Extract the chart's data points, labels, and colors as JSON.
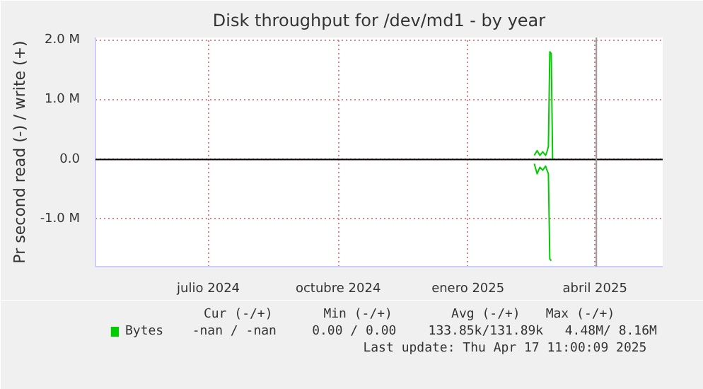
{
  "chart_data": {
    "type": "line",
    "title": "Disk throughput for /dev/md1 - by year",
    "ylabel": "Pr second read (-) / write (+)",
    "xlim": [
      "2024-04-27",
      "2025-06-03"
    ],
    "xticks": [
      {
        "value": "2024-07-16",
        "label": "julio 2024"
      },
      {
        "value": "2024-10-16",
        "label": "octubre 2024"
      },
      {
        "value": "2025-01-16",
        "label": "enero 2025"
      },
      {
        "value": "2025-04-16",
        "label": "abril 2025"
      }
    ],
    "ylim": [
      -1800000,
      2050000
    ],
    "yticks": [
      {
        "value": -1000000,
        "label": "-1.0 M"
      },
      {
        "value": 0,
        "label": "0.0"
      },
      {
        "value": 1000000,
        "label": "1.0 M"
      },
      {
        "value": 2000000,
        "label": "2.0 M"
      }
    ],
    "grid": true,
    "legend": "bottom",
    "series": [
      {
        "name": "Bytes",
        "color": "#00cc00",
        "x": [
          "2025-03-04",
          "2025-03-06",
          "2025-03-08",
          "2025-03-10",
          "2025-03-12",
          "2025-03-13",
          "2025-03-14",
          "2025-03-15",
          "2025-03-16",
          "2025-03-17"
        ],
        "values": [
          70000,
          150000,
          70000,
          130000,
          70000,
          130000,
          220000,
          1810000,
          1780000,
          0
        ]
      },
      {
        "color": "#00cc00",
        "x": [
          "2025-03-04",
          "2025-03-06",
          "2025-03-08",
          "2025-03-10",
          "2025-03-12",
          "2025-03-13",
          "2025-03-14",
          "2025-03-15",
          "2025-03-16"
        ],
        "values": [
          -70000,
          -240000,
          -130000,
          -180000,
          -110000,
          -180000,
          -240000,
          -1670000,
          -1700000
        ]
      }
    ],
    "ref_lines": [
      {
        "axis": "y",
        "value": 0,
        "color": "#000000"
      },
      {
        "axis": "x",
        "value": "2025-04-17",
        "color": "#999999"
      }
    ],
    "annotations": [
      "Cur (-/+)",
      "Min (-/+)",
      "Avg (-/+)",
      "Max (-/+)",
      "-nan /  -nan",
      "0.00 /  0.00",
      "133.85k/131.89k",
      "4.48M/  8.16M",
      "Last update: Thu Apr 17 11:00:09 2025"
    ]
  }
}
